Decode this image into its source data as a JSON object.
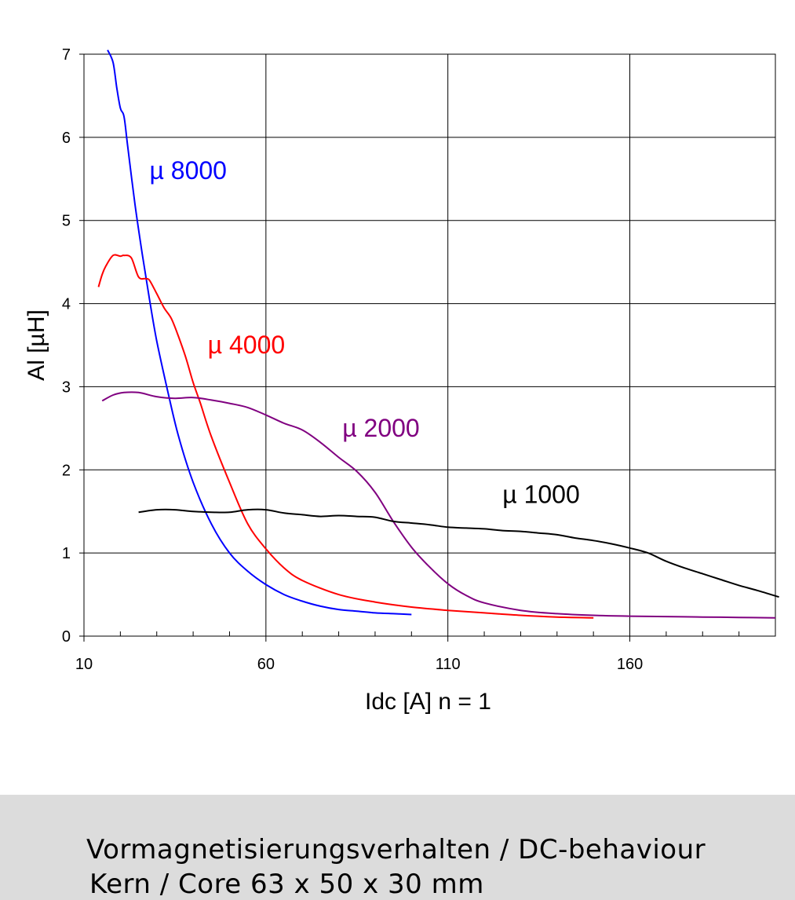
{
  "chart_data": {
    "type": "line",
    "title": "",
    "xlabel": "Idc [A]  n = 1",
    "ylabel": "Al [µH]",
    "xlim": [
      10,
      200
    ],
    "ylim": [
      0,
      7
    ],
    "x_ticks": [
      10,
      60,
      110,
      160
    ],
    "x_minor_ticks": [
      20,
      30,
      40,
      50,
      70,
      80,
      90,
      100,
      120,
      130,
      140,
      150,
      170,
      180,
      190
    ],
    "y_ticks": [
      0,
      1,
      2,
      3,
      4,
      5,
      6,
      7
    ],
    "x_gridlines": [
      60,
      110,
      160
    ],
    "y_gridlines": [
      1,
      2,
      3,
      4,
      5,
      6
    ],
    "grid": true,
    "legend": "none",
    "series": [
      {
        "name": "µ 8000",
        "color": "#0000ff",
        "label_pos": [
          28,
          5.5
        ],
        "x": [
          16.5,
          18,
          19,
          20,
          21,
          22,
          24,
          26,
          28,
          30,
          33,
          36,
          40,
          45,
          50,
          55,
          60,
          65,
          70,
          75,
          80,
          85,
          90,
          95,
          100
        ],
        "y": [
          7.05,
          6.9,
          6.6,
          6.35,
          6.25,
          5.9,
          5.2,
          4.6,
          4.05,
          3.55,
          2.95,
          2.4,
          1.85,
          1.35,
          1.0,
          0.78,
          0.62,
          0.5,
          0.42,
          0.36,
          0.32,
          0.3,
          0.28,
          0.27,
          0.26
        ]
      },
      {
        "name": "µ 4000",
        "color": "#ff0000",
        "label_pos": [
          44,
          3.4
        ],
        "x": [
          14,
          15,
          16,
          18,
          20,
          21,
          23,
          25,
          27,
          28,
          30,
          32,
          34,
          36,
          38,
          40,
          42,
          45,
          50,
          55,
          60,
          65,
          70,
          80,
          90,
          100,
          110,
          120,
          130,
          140,
          150
        ],
        "y": [
          4.2,
          4.35,
          4.45,
          4.58,
          4.57,
          4.58,
          4.55,
          4.32,
          4.3,
          4.28,
          4.12,
          3.95,
          3.82,
          3.6,
          3.35,
          3.05,
          2.8,
          2.4,
          1.85,
          1.35,
          1.05,
          0.82,
          0.67,
          0.5,
          0.41,
          0.35,
          0.31,
          0.28,
          0.25,
          0.23,
          0.22
        ]
      },
      {
        "name": "µ 2000",
        "color": "#800080",
        "label_pos": [
          81,
          2.4
        ],
        "x": [
          15,
          18,
          21,
          25,
          30,
          35,
          40,
          45,
          50,
          55,
          60,
          65,
          70,
          75,
          80,
          85,
          90,
          95,
          100,
          105,
          110,
          115,
          120,
          130,
          140,
          150,
          160,
          170,
          180,
          190,
          200
        ],
        "y": [
          2.83,
          2.9,
          2.93,
          2.93,
          2.88,
          2.86,
          2.87,
          2.84,
          2.8,
          2.75,
          2.66,
          2.56,
          2.48,
          2.33,
          2.15,
          1.98,
          1.73,
          1.38,
          1.07,
          0.83,
          0.63,
          0.49,
          0.4,
          0.31,
          0.27,
          0.25,
          0.24,
          0.235,
          0.23,
          0.225,
          0.22
        ]
      },
      {
        "name": "µ 1000",
        "color": "#000000",
        "label_pos": [
          125,
          1.6
        ],
        "x": [
          25,
          30,
          35,
          40,
          45,
          50,
          55,
          60,
          65,
          70,
          75,
          80,
          85,
          90,
          95,
          100,
          105,
          110,
          115,
          120,
          125,
          130,
          135,
          140,
          145,
          150,
          155,
          160,
          165,
          170,
          175,
          180,
          185,
          190,
          195,
          201
        ],
        "y": [
          1.49,
          1.52,
          1.52,
          1.5,
          1.49,
          1.49,
          1.52,
          1.52,
          1.48,
          1.46,
          1.44,
          1.45,
          1.44,
          1.43,
          1.38,
          1.36,
          1.34,
          1.31,
          1.3,
          1.29,
          1.27,
          1.26,
          1.24,
          1.22,
          1.18,
          1.15,
          1.11,
          1.06,
          1.0,
          0.9,
          0.82,
          0.75,
          0.68,
          0.61,
          0.55,
          0.47
        ]
      }
    ]
  },
  "caption": {
    "line1": "Vormagnetisierungsverhalten / DC-behaviour",
    "line2": "Kern / Core 63 x 50 x 30 mm",
    "background": "#dcdcdc"
  }
}
